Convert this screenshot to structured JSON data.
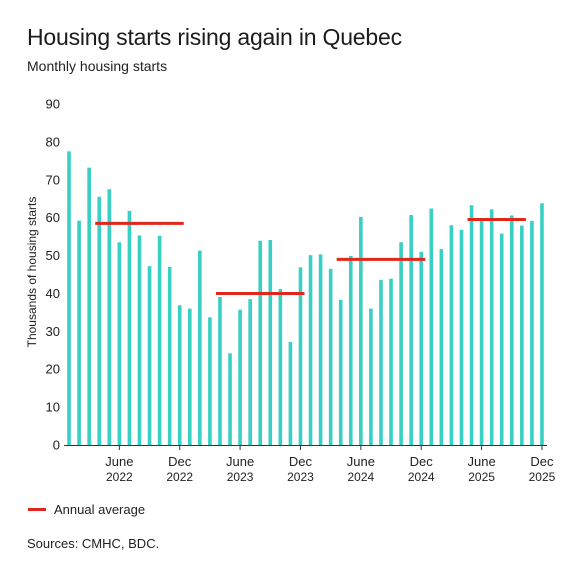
{
  "title": "Housing starts rising again in Quebec",
  "subtitle": "Monthly housing starts",
  "legend_label": "Annual average",
  "sources": "Sources: CMHC, BDC.",
  "colors": {
    "bar": "#38cfc4",
    "average": "#e1261c",
    "axis": "#333333"
  },
  "chart_data": {
    "type": "bar",
    "ylabel": "Thousands of housing starts",
    "ylim": [
      0,
      90
    ],
    "yticks": [
      0,
      10,
      20,
      30,
      40,
      50,
      60,
      70,
      80,
      90
    ],
    "grid": false,
    "x_tick_labels": [
      {
        "index": 5,
        "line1": "June",
        "line2": "2022"
      },
      {
        "index": 11,
        "line1": "Dec",
        "line2": "2022"
      },
      {
        "index": 17,
        "line1": "June",
        "line2": "2023"
      },
      {
        "index": 23,
        "line1": "Dec",
        "line2": "2023"
      },
      {
        "index": 29,
        "line1": "June",
        "line2": "2024"
      },
      {
        "index": 35,
        "line1": "Dec",
        "line2": "2024"
      },
      {
        "index": 41,
        "line1": "June",
        "line2": "2025"
      },
      {
        "index": 47,
        "line1": "Dec",
        "line2": "2025"
      }
    ],
    "series": [
      {
        "type": "bar",
        "values": [
          77.5,
          59.2,
          73.2,
          65.5,
          67.5,
          53.5,
          61.8,
          55.3,
          47.2,
          55.2,
          47.0,
          36.9,
          36.0,
          51.3,
          33.7,
          39.1,
          24.2,
          35.7,
          38.5,
          53.9,
          54.1,
          41.2,
          27.2,
          46.9,
          50.1,
          50.3,
          46.5,
          38.3,
          49.9,
          60.2,
          36.0,
          43.6,
          43.9,
          53.5,
          60.7,
          51.0,
          62.4,
          51.7,
          58.0,
          56.8,
          63.3,
          59.3,
          62.2,
          55.8,
          60.6,
          57.9,
          59.1,
          63.8
        ]
      },
      {
        "name": "Annual average",
        "type": "step",
        "segments": [
          {
            "start_index": 3,
            "end_index": 11,
            "value": 58.5
          },
          {
            "start_index": 15,
            "end_index": 23,
            "value": 40.0
          },
          {
            "start_index": 27,
            "end_index": 35,
            "value": 49.0
          },
          {
            "start_index": 40,
            "end_index": 45,
            "value": 59.5
          }
        ]
      }
    ]
  }
}
